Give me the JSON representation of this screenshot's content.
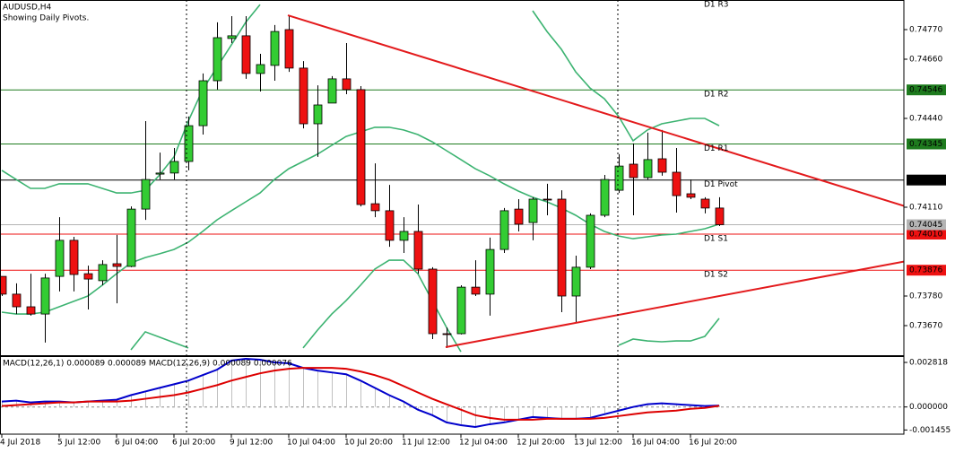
{
  "chart_data": [
    {
      "type": "candlestick",
      "title": "AUDUSD,H4",
      "subtitle": "Showing Daily Pivots.",
      "categories": [
        "4 Jul 2018",
        null,
        null,
        null,
        "5 Jul 12:00",
        null,
        null,
        null,
        "6 Jul 04:00",
        null,
        null,
        null,
        "6 Jul 20:00",
        null,
        null,
        null,
        "9 Jul 12:00",
        null,
        null,
        null,
        "10 Jul 04:00",
        null,
        null,
        null,
        "10 Jul 20:00",
        null,
        null,
        null,
        "11 Jul 12:00",
        null,
        null,
        null,
        "12 Jul 04:00",
        null,
        null,
        null,
        "12 Jul 20:00",
        null,
        null,
        null,
        "13 Jul 12:00",
        null,
        null,
        null,
        "16 Jul 04:00",
        null,
        null,
        null,
        "16 Jul 20:00",
        null,
        null
      ],
      "open": [
        0.73853,
        0.73787,
        0.7374,
        0.73713,
        0.73853,
        0.73987,
        0.73863,
        0.73837,
        0.739,
        0.7389,
        0.74103,
        0.74233,
        0.74237,
        0.7428,
        0.74413,
        0.7458,
        0.74737,
        0.74747,
        0.74607,
        0.74637,
        0.7477,
        0.74627,
        0.7442,
        0.74497,
        0.74587,
        0.74547,
        0.74123,
        0.74097,
        0.73987,
        0.7402,
        0.7388,
        0.7364,
        0.7364,
        0.73813,
        0.73787,
        0.73953,
        0.74103,
        0.74053,
        0.7414,
        0.7414,
        0.7378,
        0.73887,
        0.7408,
        0.74173,
        0.7427,
        0.7422,
        0.7429,
        0.7424,
        0.7416,
        0.7414,
        0.74107
      ],
      "high": [
        0.73853,
        0.73827,
        0.73863,
        0.73863,
        0.74073,
        0.74,
        0.73893,
        0.73913,
        0.74007,
        0.74113,
        0.7443,
        0.74313,
        0.7433,
        0.74447,
        0.74607,
        0.74797,
        0.7482,
        0.7482,
        0.7468,
        0.74787,
        0.7482,
        0.74653,
        0.74563,
        0.74597,
        0.7472,
        0.7456,
        0.74273,
        0.74193,
        0.74073,
        0.7412,
        0.73887,
        0.73663,
        0.7382,
        0.73913,
        0.73997,
        0.74107,
        0.7414,
        0.74147,
        0.74197,
        0.74173,
        0.7393,
        0.74087,
        0.7423,
        0.74307,
        0.74347,
        0.74387,
        0.74397,
        0.7433,
        0.74213,
        0.74147,
        0.74147
      ],
      "low": [
        0.7378,
        0.73713,
        0.73707,
        0.73607,
        0.73797,
        0.73797,
        0.7373,
        0.7382,
        0.73753,
        0.73887,
        0.74063,
        0.74213,
        0.74213,
        0.74247,
        0.7438,
        0.74547,
        0.7472,
        0.74587,
        0.7454,
        0.7458,
        0.74613,
        0.74403,
        0.74297,
        0.74497,
        0.7453,
        0.74113,
        0.74073,
        0.73963,
        0.7394,
        0.73863,
        0.7362,
        0.73587,
        0.73637,
        0.7378,
        0.73707,
        0.7394,
        0.7402,
        0.73987,
        0.7408,
        0.7372,
        0.7368,
        0.7388,
        0.74073,
        0.74163,
        0.7408,
        0.74213,
        0.74227,
        0.7409,
        0.7414,
        0.74087,
        0.7404
      ],
      "close": [
        0.73787,
        0.7374,
        0.73713,
        0.73847,
        0.73987,
        0.7386,
        0.73843,
        0.73897,
        0.7389,
        0.74103,
        0.74213,
        0.74237,
        0.7428,
        0.74413,
        0.7458,
        0.7474,
        0.74747,
        0.74607,
        0.7464,
        0.74763,
        0.74627,
        0.7442,
        0.7449,
        0.74587,
        0.74547,
        0.7412,
        0.74097,
        0.73987,
        0.7402,
        0.7388,
        0.7364,
        0.73637,
        0.73813,
        0.73787,
        0.73953,
        0.74097,
        0.74047,
        0.7414,
        0.74137,
        0.7378,
        0.73887,
        0.7408,
        0.74213,
        0.74263,
        0.7422,
        0.74287,
        0.7424,
        0.74153,
        0.74147,
        0.74107,
        0.74045
      ],
      "up_color": "#33cc33",
      "down_color": "#ee1111",
      "ylim": [
        0.7356,
        0.7488
      ],
      "yticks": [
        {
          "value": 0.7477,
          "label": "0.74770"
        },
        {
          "value": 0.7466,
          "label": "0.74660"
        },
        {
          "value": 0.7444,
          "label": "0.74440"
        },
        {
          "value": 0.7411,
          "label": "0.74110"
        },
        {
          "value": 0.7378,
          "label": "0.73780"
        },
        {
          "value": 0.7367,
          "label": "0.73670"
        }
      ],
      "bands": {
        "color": "#3cb371",
        "upper": [
          0.74247,
          0.74213,
          0.7418,
          0.7418,
          0.74197,
          0.74197,
          0.74197,
          0.7418,
          0.74163,
          0.74163,
          0.74173,
          0.7423,
          0.74297,
          0.7443,
          0.74547,
          0.7463,
          0.74713,
          0.74797,
          0.74863,
          null,
          null,
          null,
          null,
          null,
          null,
          null,
          null,
          null,
          null,
          null,
          null,
          null,
          null,
          null,
          null,
          null,
          null,
          0.7484,
          0.74763,
          0.74697,
          0.74613,
          0.74553,
          0.74513,
          0.74447,
          0.74357,
          0.74397,
          0.7442,
          0.7443,
          0.7444,
          0.7444,
          0.74413
        ],
        "middle": [
          0.7372,
          0.73713,
          0.73713,
          0.7372,
          0.7374,
          0.7376,
          0.7378,
          0.7382,
          0.73863,
          0.73903,
          0.73923,
          0.73937,
          0.73953,
          0.7398,
          0.7402,
          0.74063,
          0.74097,
          0.7413,
          0.74163,
          0.74213,
          0.74253,
          0.7428,
          0.74307,
          0.7434,
          0.74373,
          0.7439,
          0.74407,
          0.74407,
          0.74397,
          0.7438,
          0.74353,
          0.7432,
          0.74287,
          0.74253,
          0.74227,
          0.74197,
          0.7417,
          0.74147,
          0.7413,
          0.74107,
          0.7408,
          0.74047,
          0.7402,
          0.74003,
          0.73993,
          0.74,
          0.74007,
          0.7401,
          0.7402,
          0.7403,
          0.74047
        ],
        "lower": [
          null,
          null,
          null,
          null,
          null,
          null,
          null,
          null,
          null,
          0.7358,
          0.73647,
          0.73627,
          0.73607,
          0.73587,
          null,
          null,
          null,
          null,
          null,
          null,
          null,
          0.73587,
          0.73653,
          0.73713,
          0.73763,
          0.7382,
          0.7388,
          0.73913,
          0.73913,
          0.73863,
          0.73763,
          0.73663,
          0.73573,
          null,
          null,
          null,
          null,
          null,
          null,
          null,
          null,
          null,
          null,
          0.73597,
          0.7362,
          0.73613,
          0.7361,
          0.73613,
          0.73613,
          0.7363,
          0.73697
        ]
      },
      "levels": [
        {
          "name": "D1 R3",
          "value": 0.7488,
          "color": "#1e7b1e"
        },
        {
          "name": "D1 R2",
          "value": 0.74546,
          "label": "0.74546",
          "color": "#1e7b1e"
        },
        {
          "name": "D1 R1",
          "value": 0.74345,
          "label": "0.74345",
          "color": "#1e7b1e"
        },
        {
          "name": "D1 Pivot",
          "value": 0.74211,
          "label": "0.74211",
          "color": "#000000"
        },
        {
          "name": "D1 S1",
          "value": 0.7401,
          "label": "0.74010",
          "color": "#ee1111"
        },
        {
          "name": "D1 S2",
          "value": 0.73876,
          "label": "0.73876",
          "color": "#ee1111"
        }
      ],
      "current_price": 0.74045,
      "current_color": "#b4b4b4",
      "trendlines": [
        {
          "color": "#e31a1c",
          "values": [
            0.74823,
            0.74115
          ]
        },
        {
          "color": "#e31a1c",
          "values": [
            0.7359,
            0.73908
          ]
        }
      ]
    },
    {
      "type": "macd",
      "title": "MACD(12,26,1) 0.000089 0.000089 MACD(12,26,9) 0.000089 0.000076",
      "ylim": [
        -0.00172,
        0.00316
      ],
      "yticks": [
        0.002818,
        {
          "value": 0,
          "label": "0.000000"
        },
        -0.001455
      ],
      "histogram_color": "#c0c0c0",
      "series": [
        {
          "color": "#0000cc",
          "values": [
            0.000345,
            0.000403,
            0.000288,
            0.000345,
            0.000345,
            0.000288,
            0.000345,
            0.000403,
            0.00046,
            0.000748,
            0.000978,
            0.001208,
            0.001438,
            0.001668,
            0.002013,
            0.002358,
            0.002933,
            0.003048,
            0.002991,
            0.002818,
            0.002761,
            0.002473,
            0.0023,
            0.002185,
            0.00207,
            0.001668,
            0.001208,
            0.000748,
            0.000345,
            -0.000173,
            -0.000518,
            -0.000978,
            -0.00115,
            -0.001265,
            -0.001093,
            -0.000978,
            -0.000805,
            -0.000633,
            -0.00069,
            -0.000748,
            -0.000748,
            -0.00069,
            -0.00046,
            -0.00023,
            0,
            0.000173,
            0.00023,
            0.000173,
            0.000115,
            5.8e-05,
            8.9e-05
          ]
        },
        {
          "color": "#dd0000",
          "values": [
            5.8e-05,
            0.000115,
            0.000173,
            0.00023,
            0.000288,
            0.000288,
            0.000345,
            0.000345,
            0.000345,
            0.000403,
            0.000518,
            0.000633,
            0.000748,
            0.00092,
            0.00115,
            0.00138,
            0.001668,
            0.001898,
            0.002128,
            0.0023,
            0.002415,
            0.002473,
            0.002473,
            0.002473,
            0.002415,
            0.002243,
            0.002013,
            0.001725,
            0.001323,
            0.00092,
            0.000518,
            0.000173,
            -0.000173,
            -0.000518,
            -0.00069,
            -0.000805,
            -0.000805,
            -0.000805,
            -0.000748,
            -0.000748,
            -0.000748,
            -0.000748,
            -0.00069,
            -0.000575,
            -0.00046,
            -0.000345,
            -0.000288,
            -0.00023,
            -0.000115,
            -5.8e-05,
            7.6e-05
          ]
        }
      ]
    }
  ]
}
